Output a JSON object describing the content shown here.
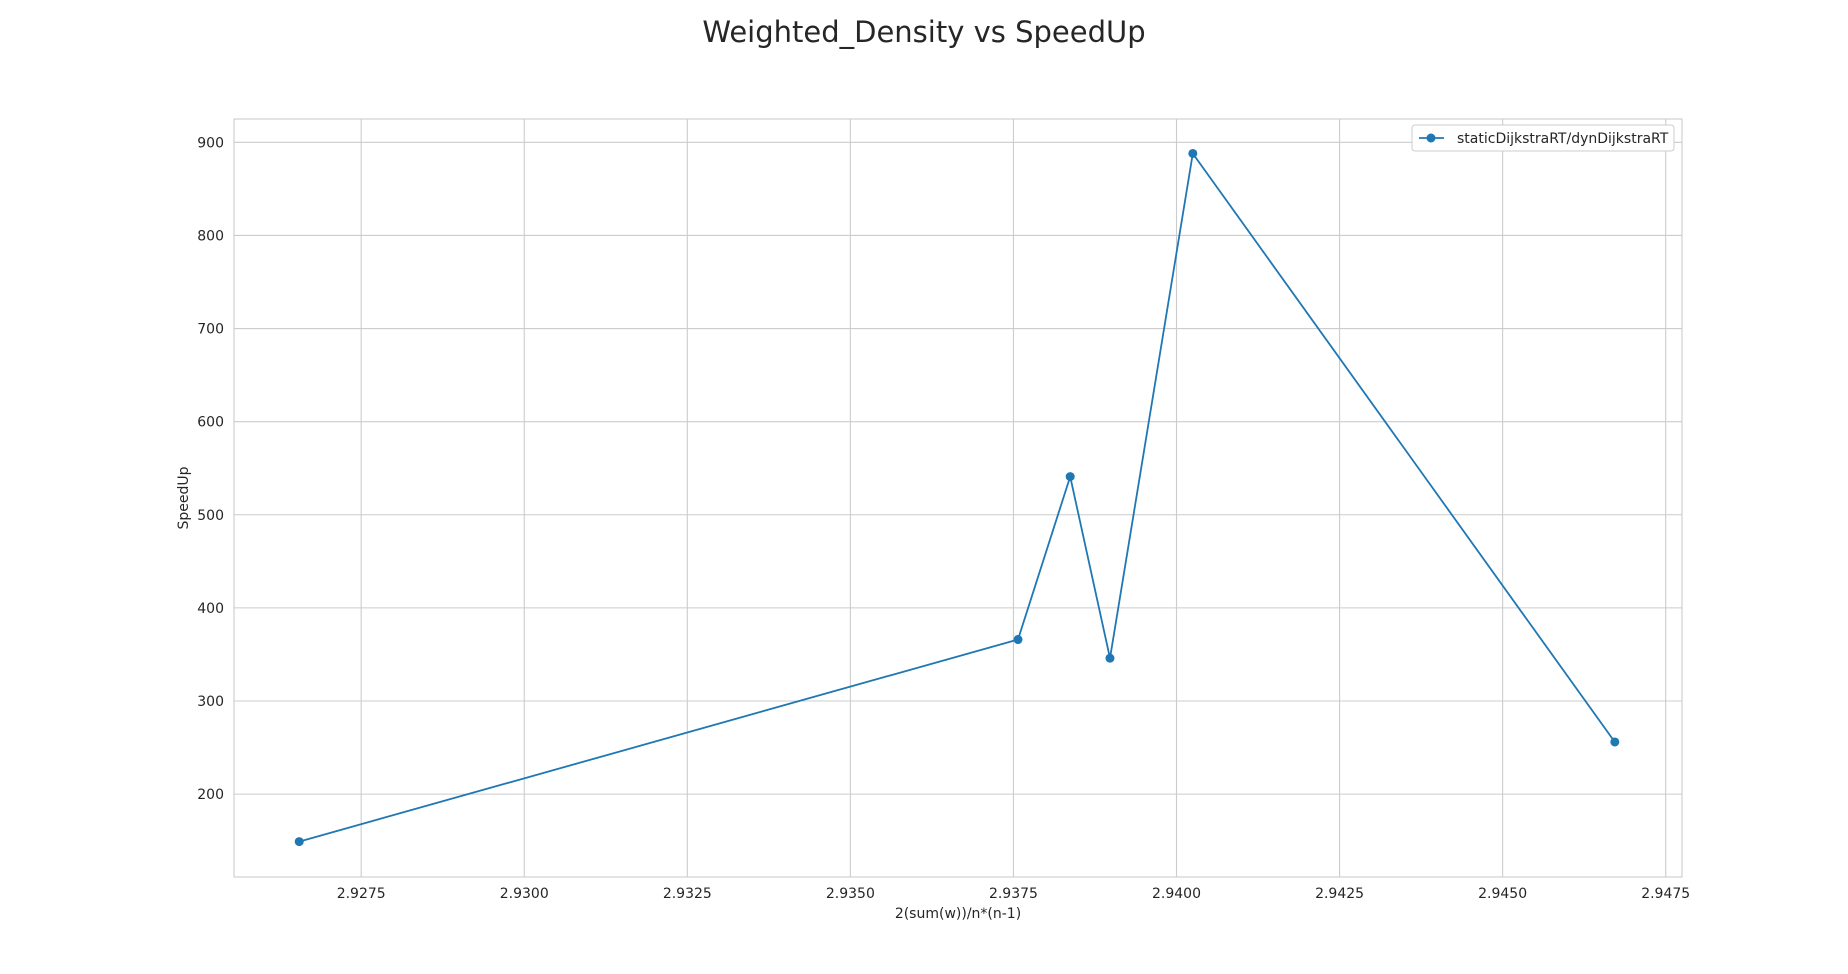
{
  "chart_data": {
    "type": "line",
    "title": "Weighted_Density vs SpeedUp",
    "xlabel": "2(sum(w))/n*(n-1)",
    "ylabel": "SpeedUp",
    "xlim": [
      2.92555,
      2.94775
    ],
    "ylim": [
      111,
      925
    ],
    "x_ticks": [
      2.9275,
      2.93,
      2.9325,
      2.935,
      2.9375,
      2.94,
      2.9425,
      2.945,
      2.9475
    ],
    "x_tick_labels": [
      "2.9275",
      "2.9300",
      "2.9325",
      "2.9350",
      "2.9375",
      "2.9400",
      "2.9425",
      "2.9450",
      "2.9475"
    ],
    "y_ticks": [
      200,
      300,
      400,
      500,
      600,
      700,
      800,
      900
    ],
    "y_tick_labels": [
      "200",
      "300",
      "400",
      "500",
      "600",
      "700",
      "800",
      "900"
    ],
    "grid": true,
    "legend_position": "top-right",
    "series": [
      {
        "name": "staticDijkstraRT/dynDijkstraRT",
        "color": "#1f77b4",
        "marker": "circle",
        "x": [
          2.92655,
          2.93757,
          2.93837,
          2.93898,
          2.94025,
          2.94672
        ],
        "y": [
          149,
          366,
          541,
          346,
          888,
          256
        ]
      }
    ]
  }
}
